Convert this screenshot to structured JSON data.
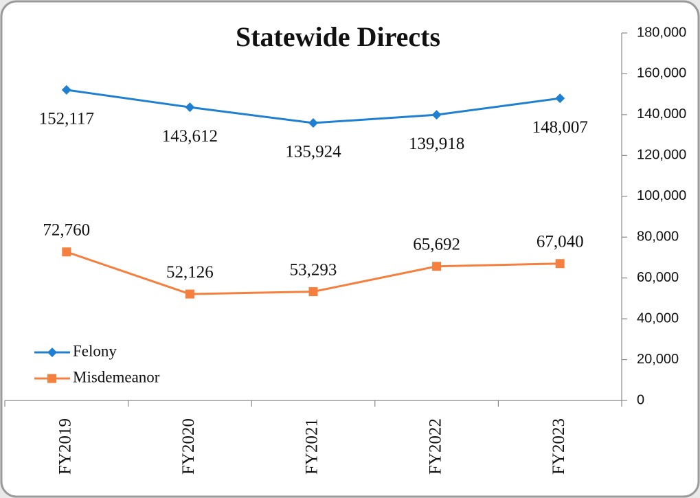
{
  "chart_data": {
    "type": "line",
    "title": "Statewide Directs",
    "categories": [
      "FY2019",
      "FY2020",
      "FY2021",
      "FY2022",
      "FY2023"
    ],
    "series": [
      {
        "name": "Felony",
        "color": "#1f7fd0",
        "marker": "diamond",
        "values": [
          152117,
          143612,
          135924,
          139918,
          148007
        ],
        "value_labels": [
          "152,117",
          "143,612",
          "135,924",
          "139,918",
          "148,007"
        ],
        "label_position": "below"
      },
      {
        "name": "Misdemeanor",
        "color": "#f47f3f",
        "marker": "square",
        "values": [
          72760,
          52126,
          53293,
          65692,
          67040
        ],
        "value_labels": [
          "72,760",
          "52,126",
          "53,293",
          "65,692",
          "67,040"
        ],
        "label_position": "above"
      }
    ],
    "ylim": [
      0,
      180000
    ],
    "yticks": [
      {
        "value": 0,
        "label": "0"
      },
      {
        "value": 20000,
        "label": "20,000"
      },
      {
        "value": 40000,
        "label": "40,000"
      },
      {
        "value": 60000,
        "label": "60,000"
      },
      {
        "value": 80000,
        "label": "80,000"
      },
      {
        "value": 100000,
        "label": "100,000"
      },
      {
        "value": 120000,
        "label": "120,000"
      },
      {
        "value": 140000,
        "label": "140,000"
      },
      {
        "value": 160000,
        "label": "160,000"
      },
      {
        "value": 180000,
        "label": "180,000"
      }
    ],
    "y_axis_side": "right",
    "grid": false,
    "legend": "lower left"
  }
}
